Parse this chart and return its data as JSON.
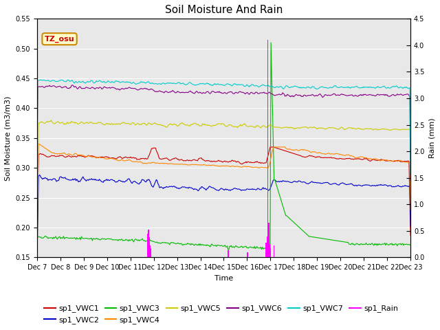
{
  "title": "Soil Moisture And Rain",
  "xlabel": "Time",
  "ylabel_left": "Soil Moisture (m3/m3)",
  "ylabel_right": "Rain (mm)",
  "station_label": "TZ_osu",
  "ylim_left": [
    0.15,
    0.55
  ],
  "ylim_right": [
    0.0,
    4.5
  ],
  "yticks_left": [
    0.15,
    0.2,
    0.25,
    0.3,
    0.35,
    0.4,
    0.45,
    0.5,
    0.55
  ],
  "yticks_right": [
    0.0,
    0.5,
    1.0,
    1.5,
    2.0,
    2.5,
    3.0,
    3.5,
    4.0,
    4.5
  ],
  "num_points": 480,
  "colors": {
    "VWC1": "#cc0000",
    "VWC2": "#0000cc",
    "VWC3": "#00bb00",
    "VWC4": "#ff8800",
    "VWC5": "#cccc00",
    "VWC6": "#880088",
    "VWC7": "#00cccc",
    "Rain": "#ff00ff"
  },
  "background_color": "#e8e8e8",
  "title_fontsize": 11,
  "legend_fontsize": 8,
  "axes_label_fontsize": 8,
  "tick_fontsize": 7
}
